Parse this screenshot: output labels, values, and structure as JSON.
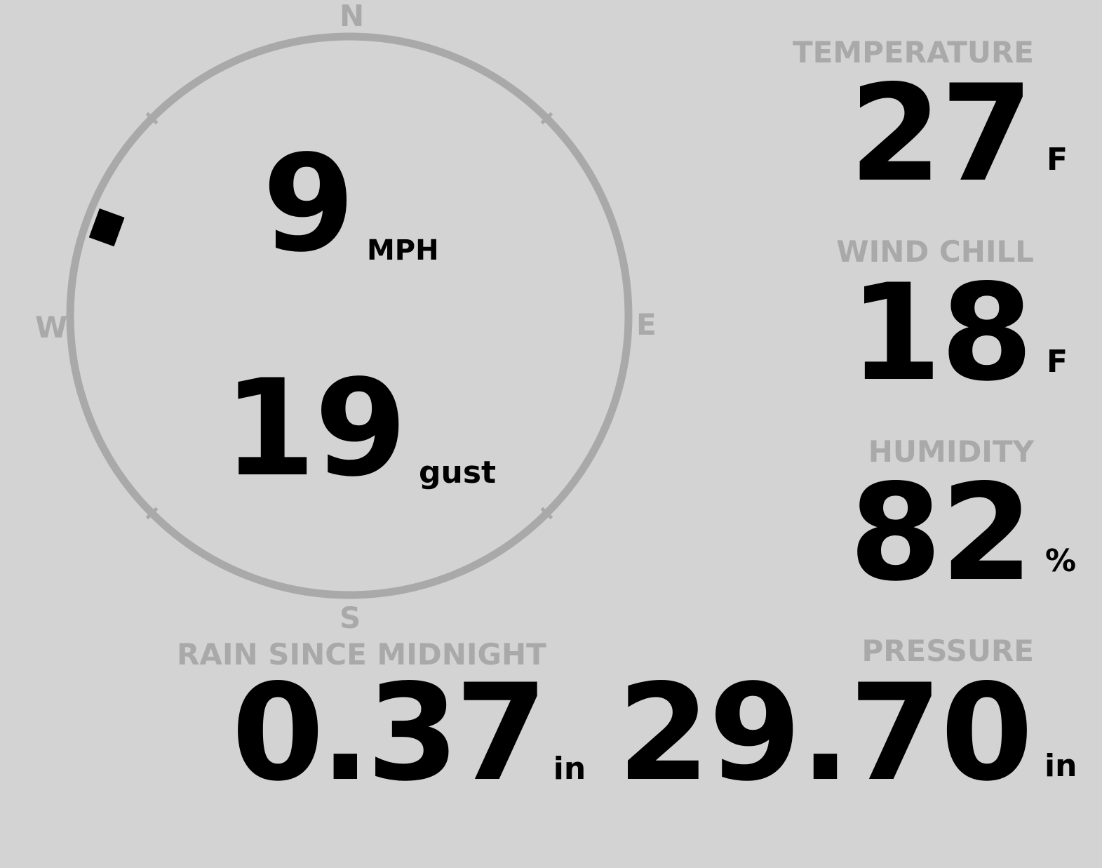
{
  "colors": {
    "background": "#d3d3d3",
    "label": "#a9a9a9",
    "value": "#000000"
  },
  "wind": {
    "direction_deg": 290,
    "speed": "9",
    "speed_unit": "MPH",
    "gust": "19",
    "gust_unit": "gust",
    "compass": {
      "n": "N",
      "e": "E",
      "s": "S",
      "w": "W"
    }
  },
  "temperature": {
    "label": "TEMPERATURE",
    "value": "27",
    "unit": "F"
  },
  "wind_chill": {
    "label": "WIND CHILL",
    "value": "18",
    "unit": "F"
  },
  "humidity": {
    "label": "HUMIDITY",
    "value": "82",
    "unit": "%"
  },
  "rain": {
    "label": "RAIN SINCE MIDNIGHT",
    "value": "0.37",
    "unit": "in"
  },
  "pressure": {
    "label": "PRESSURE",
    "value": "29.70",
    "unit": "in"
  }
}
